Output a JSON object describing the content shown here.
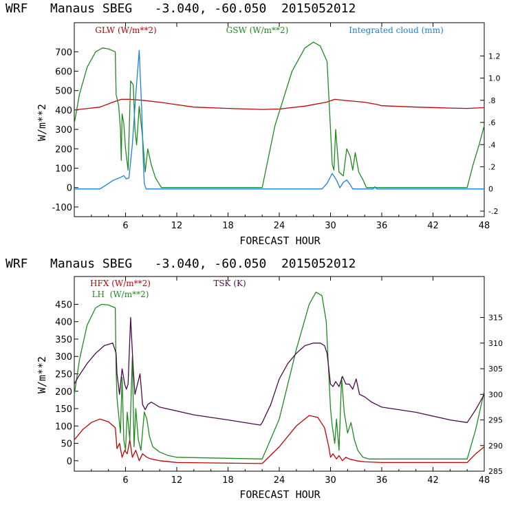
{
  "chart_data": [
    {
      "type": "line",
      "title": "WRF   Manaus SBEG   -3.040, -60.050  2015052012",
      "xlabel": "FORECAST HOUR",
      "ylabel": "W/m**2",
      "xlim": [
        0,
        48
      ],
      "ylim": [
        -150,
        850
      ],
      "xticks": [
        "6",
        "12",
        "18",
        "24",
        "30",
        "36",
        "42",
        "48"
      ],
      "yticks": [
        "-100",
        "0",
        "100",
        "200",
        "300",
        "400",
        "500",
        "600",
        "700"
      ],
      "y2lim": [
        -0.25,
        1.5
      ],
      "y2ticks": [
        "-.2",
        "0",
        ".2",
        ".4",
        ".6",
        ".8",
        "1.0",
        "1.2"
      ],
      "legend": [
        {
          "label": "GLW (W/m**2)",
          "color": "#c00000"
        },
        {
          "label": "GSW (W/m**2)",
          "color": "#1e8a1e"
        },
        {
          "label": "Integrated cloud (mm)",
          "color": "#1a7fe0"
        }
      ],
      "series": [
        {
          "name": "GLW",
          "axis": "left",
          "color": "#c00000",
          "x": [
            0,
            3,
            4.5,
            5.5,
            6.5,
            8,
            10,
            14,
            18,
            22,
            24,
            27,
            29.5,
            30.5,
            32,
            34,
            35.5,
            36,
            40,
            44,
            46,
            48
          ],
          "y": [
            400,
            415,
            440,
            455,
            455,
            450,
            440,
            415,
            408,
            403,
            405,
            420,
            440,
            455,
            448,
            440,
            428,
            422,
            415,
            410,
            408,
            412
          ]
        },
        {
          "name": "GSW",
          "axis": "left",
          "color": "#1e8a1e",
          "x": [
            0,
            0.6,
            1.5,
            2.5,
            3.3,
            4.0,
            4.8,
            4.9,
            5.0,
            5.2,
            5.4,
            5.5,
            5.6,
            5.8,
            6.0,
            6.3,
            6.6,
            6.9,
            7.1,
            7.3,
            7.6,
            8.0,
            8.3,
            8.6,
            9.0,
            9.5,
            10.2,
            22.0,
            23.5,
            25.5,
            27.0,
            28.0,
            28.8,
            29.6,
            30.0,
            30.2,
            30.4,
            30.6,
            31.0,
            31.5,
            31.9,
            32.3,
            32.6,
            32.9,
            33.3,
            33.8,
            34.2,
            46.0,
            46.7,
            47.4,
            48.0
          ],
          "y": [
            330,
            480,
            620,
            700,
            720,
            715,
            700,
            480,
            460,
            420,
            300,
            140,
            380,
            330,
            200,
            90,
            550,
            530,
            300,
            220,
            420,
            260,
            80,
            200,
            120,
            50,
            0,
            0,
            320,
            600,
            720,
            750,
            730,
            650,
            300,
            120,
            90,
            300,
            80,
            60,
            200,
            160,
            90,
            180,
            80,
            40,
            0,
            0,
            120,
            220,
            320
          ]
        },
        {
          "name": "Integrated cloud",
          "axis": "right",
          "color": "#1a7fe0",
          "x": [
            0,
            3.0,
            3.8,
            4.6,
            5.3,
            5.8,
            6.1,
            6.4,
            6.8,
            7.2,
            7.6,
            7.9,
            8.1,
            8.2,
            8.4,
            29.0,
            29.6,
            30.2,
            30.7,
            31.1,
            31.5,
            31.9,
            32.3,
            32.6,
            35.0,
            35.2,
            35.4,
            48.0
          ],
          "y": [
            0,
            0,
            0.04,
            0.08,
            0.1,
            0.12,
            0.09,
            0.1,
            0.4,
            0.85,
            1.25,
            0.7,
            0.2,
            0.05,
            0,
            0,
            0.05,
            0.14,
            0.08,
            0.01,
            0.06,
            0.08,
            0.04,
            0,
            0,
            0.02,
            0,
            0
          ]
        }
      ]
    },
    {
      "type": "line",
      "title": "WRF   Manaus SBEG   -3.040, -60.050  2015052012",
      "xlabel": "FORECAST HOUR",
      "ylabel": "W/m**2",
      "xlim": [
        0,
        48
      ],
      "ylim": [
        -30,
        530
      ],
      "xticks": [
        "6",
        "12",
        "18",
        "24",
        "30",
        "36",
        "42",
        "48"
      ],
      "yticks": [
        "0",
        "50",
        "100",
        "150",
        "200",
        "250",
        "300",
        "350",
        "400",
        "450"
      ],
      "y2lim": [
        285,
        323
      ],
      "y2ticks": [
        "285",
        "290",
        "295",
        "300",
        "305",
        "310",
        "315"
      ],
      "legend": [
        {
          "label": "HFX (W/m**2)",
          "color": "#c00000"
        },
        {
          "label": "LH  (W/m**2)",
          "color": "#1e8a1e"
        },
        {
          "label": "TSK (K)",
          "color": "#4a0a4a"
        }
      ],
      "series": [
        {
          "name": "HFX",
          "axis": "left",
          "color": "#c00000",
          "x": [
            0,
            1,
            2,
            3,
            4,
            4.8,
            5.0,
            5.3,
            5.6,
            5.9,
            6.2,
            6.5,
            6.8,
            7.2,
            7.6,
            8.0,
            8.5,
            9.0,
            10,
            12,
            22,
            24,
            26,
            27.5,
            28.5,
            29.3,
            29.8,
            30.0,
            30.3,
            30.7,
            31.0,
            31.4,
            31.8,
            32.2,
            33.0,
            34.0,
            36,
            46,
            47,
            48
          ],
          "y": [
            60,
            90,
            110,
            120,
            112,
            95,
            35,
            50,
            10,
            30,
            20,
            60,
            10,
            30,
            0,
            20,
            10,
            5,
            0,
            -5,
            -8,
            40,
            100,
            130,
            125,
            95,
            40,
            10,
            20,
            5,
            15,
            0,
            10,
            5,
            0,
            -3,
            -5,
            -5,
            20,
            40
          ]
        },
        {
          "name": "LH",
          "axis": "left",
          "color": "#1e8a1e",
          "x": [
            0,
            0.6,
            1.5,
            2.5,
            3.2,
            4.0,
            4.8,
            4.9,
            5.0,
            5.2,
            5.4,
            5.6,
            5.8,
            6.0,
            6.2,
            6.5,
            6.8,
            7.0,
            7.2,
            7.5,
            7.8,
            8.2,
            8.5,
            8.8,
            9.2,
            10.0,
            11.0,
            12,
            22,
            24,
            26,
            27.5,
            28.3,
            29.0,
            29.5,
            29.8,
            30.0,
            30.2,
            30.5,
            30.7,
            31.0,
            31.3,
            31.6,
            32.0,
            32.4,
            32.8,
            33.2,
            33.8,
            34.5,
            36,
            46,
            47,
            48
          ],
          "y": [
            190,
            290,
            390,
            440,
            450,
            448,
            440,
            260,
            180,
            130,
            80,
            240,
            60,
            30,
            140,
            60,
            300,
            40,
            150,
            60,
            30,
            140,
            120,
            70,
            40,
            25,
            15,
            10,
            5,
            120,
            320,
            450,
            485,
            475,
            400,
            250,
            150,
            100,
            50,
            120,
            30,
            240,
            140,
            80,
            110,
            60,
            30,
            10,
            5,
            5,
            5,
            90,
            200
          ]
        },
        {
          "name": "TSK",
          "axis": "right",
          "color": "#4a0a4a",
          "x": [
            0,
            0.5,
            1.5,
            2.5,
            3.5,
            4.5,
            4.9,
            5.0,
            5.3,
            5.6,
            5.9,
            6.1,
            6.3,
            6.6,
            6.9,
            7.1,
            7.4,
            7.7,
            8.0,
            8.3,
            8.6,
            9.0,
            10,
            14,
            18,
            21.8,
            22,
            23,
            24,
            25,
            26,
            27,
            28,
            28.8,
            29.3,
            29.6,
            29.8,
            30.0,
            30.3,
            30.6,
            31.0,
            31.4,
            31.8,
            32.2,
            32.6,
            33.0,
            33.4,
            34.0,
            34.8,
            36,
            40,
            44,
            46,
            47,
            48
          ],
          "y": [
            302,
            303.5,
            306,
            308,
            309.5,
            310,
            308,
            304,
            300,
            305,
            302,
            301,
            302,
            315,
            305,
            300,
            302,
            304,
            298,
            297,
            298,
            298.5,
            297.5,
            296,
            295,
            294,
            294.5,
            298,
            303,
            306,
            308,
            309.5,
            310,
            310,
            309.5,
            308,
            305,
            302,
            301.5,
            302.5,
            301.5,
            303.5,
            302,
            302,
            301,
            303,
            300,
            299.5,
            298.5,
            297.5,
            296.5,
            295,
            294.5,
            297,
            300
          ]
        }
      ]
    }
  ]
}
